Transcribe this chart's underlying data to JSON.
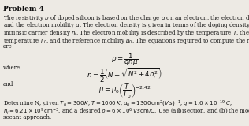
{
  "title": "Problem 4",
  "para_lines": [
    "The resistivity $\\rho$ of doped silicon is based on the charge $q$ on an electron, the electron density $n$,",
    "and the electron mobility $\\mu$. The electron density is given in terms of the doping density N and the",
    "intrinsic carrier density $n_i$. The electron mobility is described by the temperature $T$, the reference",
    "temperature $T_0$, and the reference mobility $\\mu_0$. The equations required to compute the resistivity",
    "are"
  ],
  "eq1": "$\\rho = \\dfrac{1}{qn\\mu}$",
  "where_label": "where",
  "eq2": "$n = \\dfrac{1}{2}\\left(N + \\sqrt{N^2 + 4n_i^2}\\right)$",
  "and_label": "and",
  "eq3": "$\\mu = \\mu_0 \\left(\\dfrac{T}{T_0}\\right)^{-2.42}$",
  "bottom_lines": [
    "Determine N, given $T_0 = 300\\,K$, $T = 1000\\,K$, $\\mu_0 = 1300\\,\\mathrm{cm}^2(V\\,s)^{-1}$, $q = 1.6 \\times 10^{-19}\\,C$,",
    "$n_i = 6.21 \\times 10^9\\,\\mathrm{cm}^{-3}$, and a desired $\\rho = 6 \\times 10^6\\,Vs\\,\\mathrm{cm}/C$. Use (a)bisection, and (b) the modified",
    "secant approach."
  ],
  "bg_color": "#edeae4",
  "text_color": "#111111",
  "font_size_title": 6.5,
  "font_size_body": 5.0,
  "font_size_eq": 6.2
}
